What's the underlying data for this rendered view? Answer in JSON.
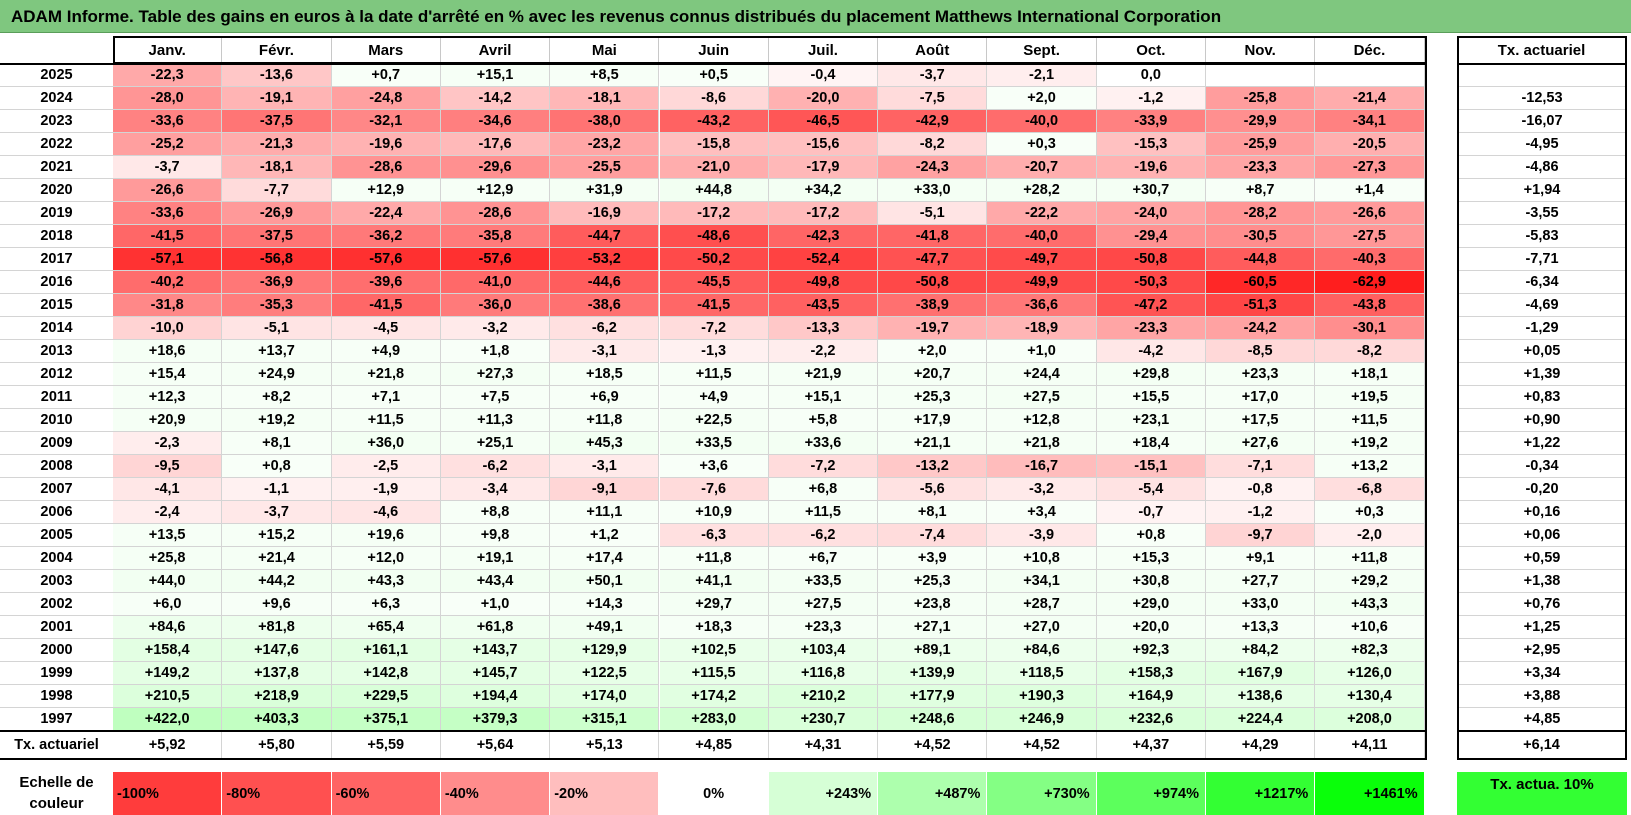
{
  "title": "ADAM Informe. Table des gains en euros à la date d'arrêté en % avec les revenus connus distribués du placement Matthews International Corporation",
  "months": [
    "Janv.",
    "Févr.",
    "Mars",
    "Avril",
    "Mai",
    "Juin",
    "Juil.",
    "Août",
    "Sept.",
    "Oct.",
    "Nov.",
    "Déc."
  ],
  "rate_header": "Tx. actuariel",
  "rows": [
    {
      "year": "2025",
      "values": [
        "-22,3",
        "-13,6",
        "+0,7",
        "+15,1",
        "+8,5",
        "+0,5",
        "-0,4",
        "-3,7",
        "-2,1",
        "0,0",
        "",
        ""
      ],
      "rate": ""
    },
    {
      "year": "2024",
      "values": [
        "-28,0",
        "-19,1",
        "-24,8",
        "-14,2",
        "-18,1",
        "-8,6",
        "-20,0",
        "-7,5",
        "+2,0",
        "-1,2",
        "-25,8",
        "-21,4"
      ],
      "rate": "-12,53"
    },
    {
      "year": "2023",
      "values": [
        "-33,6",
        "-37,5",
        "-32,1",
        "-34,6",
        "-38,0",
        "-43,2",
        "-46,5",
        "-42,9",
        "-40,0",
        "-33,9",
        "-29,9",
        "-34,1"
      ],
      "rate": "-16,07"
    },
    {
      "year": "2022",
      "values": [
        "-25,2",
        "-21,3",
        "-19,6",
        "-17,6",
        "-23,2",
        "-15,8",
        "-15,6",
        "-8,2",
        "+0,3",
        "-15,3",
        "-25,9",
        "-20,5"
      ],
      "rate": "-4,95"
    },
    {
      "year": "2021",
      "values": [
        "-3,7",
        "-18,1",
        "-28,6",
        "-29,6",
        "-25,5",
        "-21,0",
        "-17,9",
        "-24,3",
        "-20,7",
        "-19,6",
        "-23,3",
        "-27,3"
      ],
      "rate": "-4,86"
    },
    {
      "year": "2020",
      "values": [
        "-26,6",
        "-7,7",
        "+12,9",
        "+12,9",
        "+31,9",
        "+44,8",
        "+34,2",
        "+33,0",
        "+28,2",
        "+30,7",
        "+8,7",
        "+1,4"
      ],
      "rate": "+1,94"
    },
    {
      "year": "2019",
      "values": [
        "-33,6",
        "-26,9",
        "-22,4",
        "-28,6",
        "-16,9",
        "-17,2",
        "-17,2",
        "-5,1",
        "-22,2",
        "-24,0",
        "-28,2",
        "-26,6"
      ],
      "rate": "-3,55"
    },
    {
      "year": "2018",
      "values": [
        "-41,5",
        "-37,5",
        "-36,2",
        "-35,8",
        "-44,7",
        "-48,6",
        "-42,3",
        "-41,8",
        "-40,0",
        "-29,4",
        "-30,5",
        "-27,5"
      ],
      "rate": "-5,83"
    },
    {
      "year": "2017",
      "values": [
        "-57,1",
        "-56,8",
        "-57,6",
        "-57,6",
        "-53,2",
        "-50,2",
        "-52,4",
        "-47,7",
        "-49,7",
        "-50,8",
        "-44,8",
        "-40,3"
      ],
      "rate": "-7,71"
    },
    {
      "year": "2016",
      "values": [
        "-40,2",
        "-36,9",
        "-39,6",
        "-41,0",
        "-44,6",
        "-45,5",
        "-49,8",
        "-50,8",
        "-49,9",
        "-50,3",
        "-60,5",
        "-62,9"
      ],
      "rate": "-6,34"
    },
    {
      "year": "2015",
      "values": [
        "-31,8",
        "-35,3",
        "-41,5",
        "-36,0",
        "-38,6",
        "-41,5",
        "-43,5",
        "-38,9",
        "-36,6",
        "-47,2",
        "-51,3",
        "-43,8"
      ],
      "rate": "-4,69"
    },
    {
      "year": "2014",
      "values": [
        "-10,0",
        "-5,1",
        "-4,5",
        "-3,2",
        "-6,2",
        "-7,2",
        "-13,3",
        "-19,7",
        "-18,9",
        "-23,3",
        "-24,2",
        "-30,1"
      ],
      "rate": "-1,29"
    },
    {
      "year": "2013",
      "values": [
        "+18,6",
        "+13,7",
        "+4,9",
        "+1,8",
        "-3,1",
        "-1,3",
        "-2,2",
        "+2,0",
        "+1,0",
        "-4,2",
        "-8,5",
        "-8,2"
      ],
      "rate": "+0,05"
    },
    {
      "year": "2012",
      "values": [
        "+15,4",
        "+24,9",
        "+21,8",
        "+27,3",
        "+18,5",
        "+11,5",
        "+21,9",
        "+20,7",
        "+24,4",
        "+29,8",
        "+23,3",
        "+18,1"
      ],
      "rate": "+1,39"
    },
    {
      "year": "2011",
      "values": [
        "+12,3",
        "+8,2",
        "+7,1",
        "+7,5",
        "+6,9",
        "+4,9",
        "+15,1",
        "+25,3",
        "+27,5",
        "+15,5",
        "+17,0",
        "+19,5"
      ],
      "rate": "+0,83"
    },
    {
      "year": "2010",
      "values": [
        "+20,9",
        "+19,2",
        "+11,5",
        "+11,3",
        "+11,8",
        "+22,5",
        "+5,8",
        "+17,9",
        "+12,8",
        "+23,1",
        "+17,5",
        "+11,5"
      ],
      "rate": "+0,90"
    },
    {
      "year": "2009",
      "values": [
        "-2,3",
        "+8,1",
        "+36,0",
        "+25,1",
        "+45,3",
        "+33,5",
        "+33,6",
        "+21,1",
        "+21,8",
        "+18,4",
        "+27,6",
        "+19,2"
      ],
      "rate": "+1,22"
    },
    {
      "year": "2008",
      "values": [
        "-9,5",
        "+0,8",
        "-2,5",
        "-6,2",
        "-3,1",
        "+3,6",
        "-7,2",
        "-13,2",
        "-16,7",
        "-15,1",
        "-7,1",
        "+13,2"
      ],
      "rate": "-0,34"
    },
    {
      "year": "2007",
      "values": [
        "-4,1",
        "-1,1",
        "-1,9",
        "-3,4",
        "-9,1",
        "-7,6",
        "+6,8",
        "-5,6",
        "-3,2",
        "-5,4",
        "-0,8",
        "-6,8"
      ],
      "rate": "-0,20"
    },
    {
      "year": "2006",
      "values": [
        "-2,4",
        "-3,7",
        "-4,6",
        "+8,8",
        "+11,1",
        "+10,9",
        "+11,5",
        "+8,1",
        "+3,4",
        "-0,7",
        "-1,2",
        "+0,3"
      ],
      "rate": "+0,16"
    },
    {
      "year": "2005",
      "values": [
        "+13,5",
        "+15,2",
        "+19,6",
        "+9,8",
        "+1,2",
        "-6,3",
        "-6,2",
        "-7,4",
        "-3,9",
        "+0,8",
        "-9,7",
        "-2,0"
      ],
      "rate": "+0,06"
    },
    {
      "year": "2004",
      "values": [
        "+25,8",
        "+21,4",
        "+12,0",
        "+19,1",
        "+17,4",
        "+11,8",
        "+6,7",
        "+3,9",
        "+10,8",
        "+15,3",
        "+9,1",
        "+11,8"
      ],
      "rate": "+0,59"
    },
    {
      "year": "2003",
      "values": [
        "+44,0",
        "+44,2",
        "+43,3",
        "+43,4",
        "+50,1",
        "+41,1",
        "+33,5",
        "+25,3",
        "+34,1",
        "+30,8",
        "+27,7",
        "+29,2"
      ],
      "rate": "+1,38"
    },
    {
      "year": "2002",
      "values": [
        "+6,0",
        "+9,6",
        "+6,3",
        "+1,0",
        "+14,3",
        "+29,7",
        "+27,5",
        "+23,8",
        "+28,7",
        "+29,0",
        "+33,0",
        "+43,3"
      ],
      "rate": "+0,76"
    },
    {
      "year": "2001",
      "values": [
        "+84,6",
        "+81,8",
        "+65,4",
        "+61,8",
        "+49,1",
        "+18,3",
        "+23,3",
        "+27,1",
        "+27,0",
        "+20,0",
        "+13,3",
        "+10,6"
      ],
      "rate": "+1,25"
    },
    {
      "year": "2000",
      "values": [
        "+158,4",
        "+147,6",
        "+161,1",
        "+143,7",
        "+129,9",
        "+102,5",
        "+103,4",
        "+89,1",
        "+84,6",
        "+92,3",
        "+84,2",
        "+82,3"
      ],
      "rate": "+2,95"
    },
    {
      "year": "1999",
      "values": [
        "+149,2",
        "+137,8",
        "+142,8",
        "+145,7",
        "+122,5",
        "+115,5",
        "+116,8",
        "+139,9",
        "+118,5",
        "+158,3",
        "+167,9",
        "+126,0"
      ],
      "rate": "+3,34"
    },
    {
      "year": "1998",
      "values": [
        "+210,5",
        "+218,9",
        "+229,5",
        "+194,4",
        "+174,0",
        "+174,2",
        "+210,2",
        "+177,9",
        "+190,3",
        "+164,9",
        "+138,6",
        "+130,4"
      ],
      "rate": "+3,88"
    },
    {
      "year": "1997",
      "values": [
        "+422,0",
        "+403,3",
        "+375,1",
        "+379,3",
        "+315,1",
        "+283,0",
        "+230,7",
        "+248,6",
        "+246,9",
        "+232,6",
        "+224,4",
        "+208,0"
      ],
      "rate": "+4,85"
    }
  ],
  "footer": {
    "label": "Tx. actuariel",
    "values": [
      "+5,92",
      "+5,80",
      "+5,59",
      "+5,64",
      "+5,13",
      "+4,85",
      "+4,31",
      "+4,52",
      "+4,52",
      "+4,37",
      "+4,29",
      "+4,11"
    ],
    "rate": "+6,14"
  },
  "scale": {
    "label": "Echelle de couleur",
    "items": [
      {
        "label": "-100%",
        "color": "#ff3c3c"
      },
      {
        "label": "-80%",
        "color": "#ff5050"
      },
      {
        "label": "-60%",
        "color": "#ff6464"
      },
      {
        "label": "-40%",
        "color": "#ff8c8c"
      },
      {
        "label": "-20%",
        "color": "#ffbebe"
      },
      {
        "label": "0%",
        "color": "#ffffff"
      },
      {
        "label": "+243%",
        "color": "#d6ffd6"
      },
      {
        "label": "+487%",
        "color": "#adffad"
      },
      {
        "label": "+730%",
        "color": "#84ff84"
      },
      {
        "label": "+974%",
        "color": "#5cff5c"
      },
      {
        "label": "+1217%",
        "color": "#33ff33"
      },
      {
        "label": "+1461%",
        "color": "#0aff0a"
      }
    ],
    "legend": "Tx. actua. 10%",
    "legend_color": "#33ff33"
  }
}
